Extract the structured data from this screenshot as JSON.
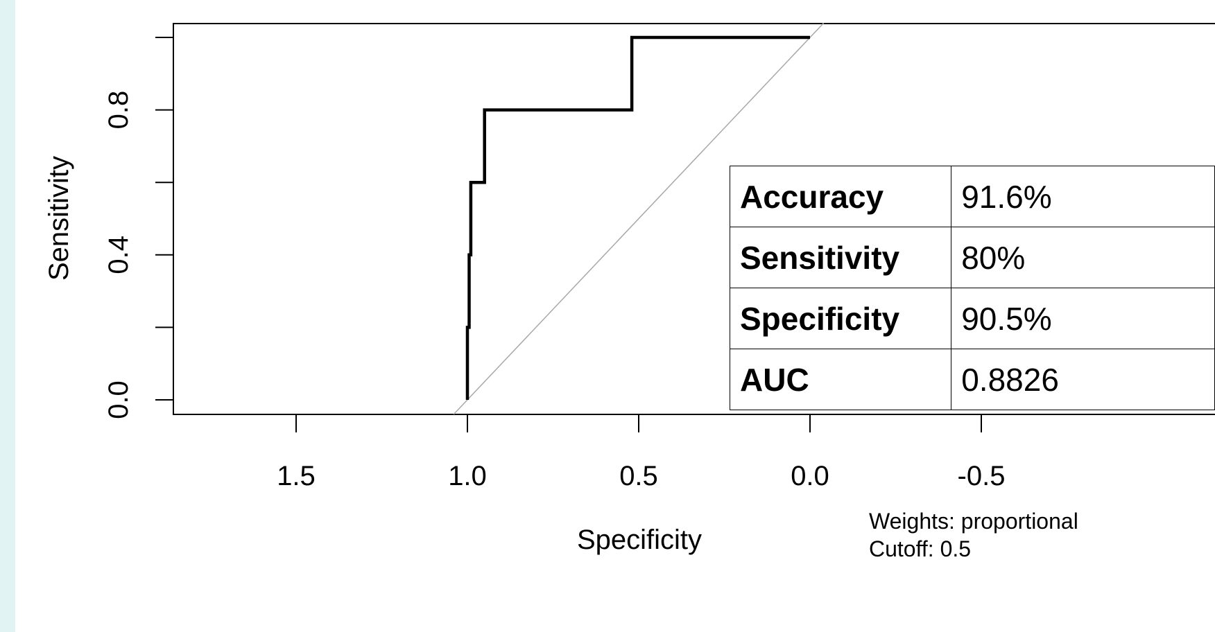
{
  "chart_data": {
    "type": "line",
    "title": "",
    "xlabel": "Specificity",
    "ylabel": "Sensitivity",
    "x_reversed": true,
    "xlim": [
      1.7,
      -0.7
    ],
    "ylim": [
      -0.04,
      1.04
    ],
    "xticks": [
      1.5,
      1.0,
      0.5,
      0.0,
      -0.5
    ],
    "xtick_labels": [
      "1.5",
      "1.0",
      "0.5",
      "0.0",
      "-0.5"
    ],
    "yticks": [
      0.0,
      0.2,
      0.4,
      0.6,
      0.8,
      1.0
    ],
    "ytick_labels": [
      "0.0",
      "",
      "0.4",
      "",
      "0.8",
      ""
    ],
    "grid": false,
    "series": [
      {
        "style": "solid-thick",
        "color": "#000000",
        "x": [
          1.0,
          1.0,
          0.995,
          0.995,
          0.99,
          0.99,
          0.98,
          0.98,
          0.965,
          0.965,
          0.95,
          0.95,
          0.935,
          0.935,
          0.52,
          0.52,
          0.0
        ],
        "y": [
          0.0,
          0.2,
          0.2,
          0.4,
          0.4,
          0.6,
          0.6,
          0.6,
          0.6,
          0.6,
          0.6,
          0.8,
          0.8,
          0.8,
          0.8,
          1.0,
          1.0
        ]
      },
      {
        "style": "diagonal-grey",
        "color": "#a8a8a8",
        "x": [
          1.04,
          -0.04
        ],
        "y": [
          -0.04,
          1.04
        ]
      }
    ]
  },
  "metrics": {
    "rows": [
      {
        "label": "Accuracy",
        "value": "91.6%"
      },
      {
        "label": "Sensitivity",
        "value": "80%"
      },
      {
        "label": "Specificity",
        "value": "90.5%"
      },
      {
        "label": "AUC",
        "value": "0.8826"
      }
    ]
  },
  "footnotes": {
    "weights": "Weights: proportional",
    "cutoff": "Cutoff: 0.5"
  },
  "colors": {
    "sidebar_strip": "#e2f3f3",
    "roc_line": "#000000",
    "reference_line": "#a8a8a8"
  }
}
